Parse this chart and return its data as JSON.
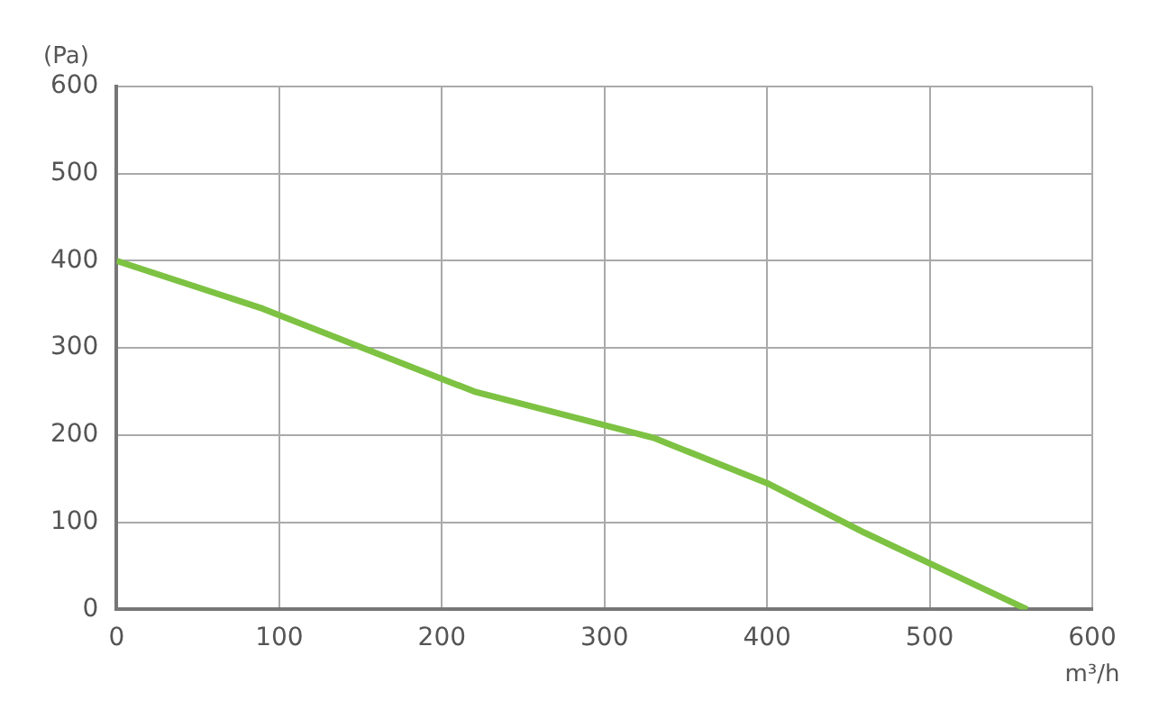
{
  "chart_data": {
    "type": "line",
    "xlabel": "m³/h",
    "ylabel": "(Pa)",
    "series": [
      {
        "color": "#7dc242",
        "x": [
          0,
          90,
          220,
          330,
          400,
          460,
          560
        ],
        "values": [
          400,
          345,
          250,
          197,
          145,
          88,
          0
        ]
      }
    ],
    "xlim": [
      0,
      600
    ],
    "xticks": [
      0,
      100,
      200,
      300,
      400,
      500,
      600
    ],
    "ylim": [
      0,
      600
    ],
    "yticks": [
      0,
      100,
      200,
      300,
      400,
      500,
      600
    ],
    "grid": true,
    "legend": false,
    "marker": "none",
    "line_style": "solid"
  }
}
